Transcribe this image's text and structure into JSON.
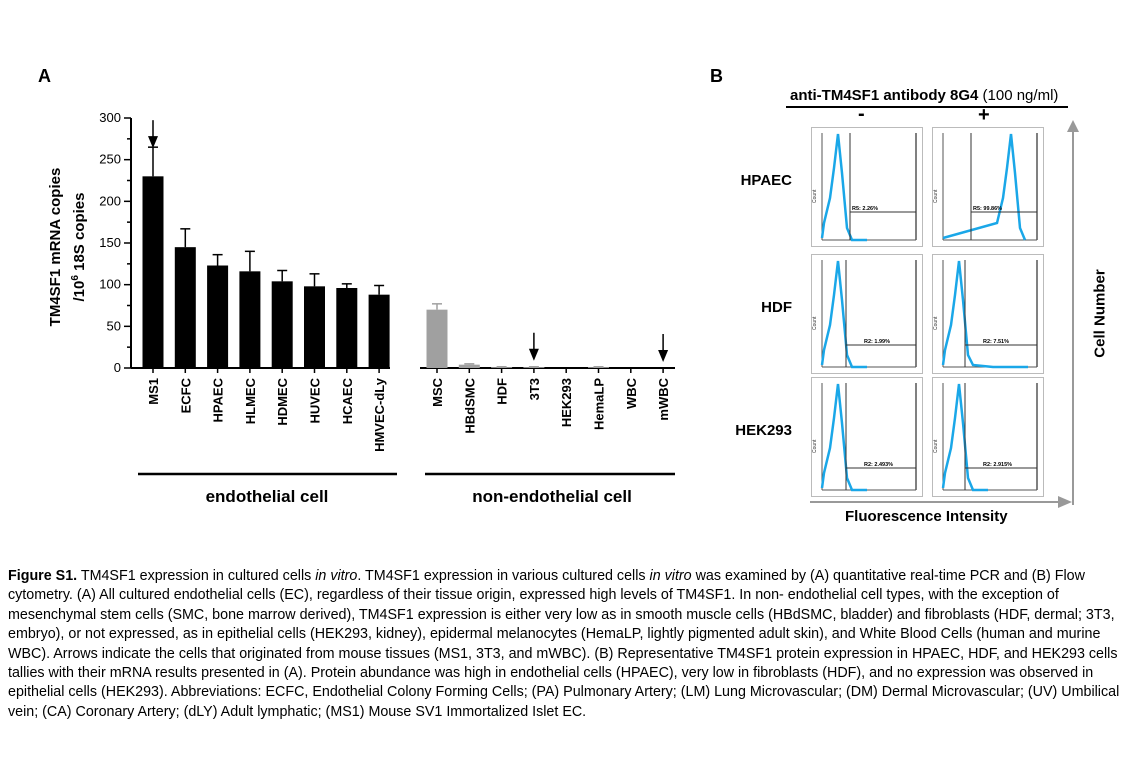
{
  "panel_a_label": "A",
  "panel_b_label": "B",
  "chart_data": {
    "type": "bar",
    "ylabel_line1": "TM4SF1 mRNA copies",
    "ylabel_line2_prefix": "/10",
    "ylabel_line2_sup": "6",
    "ylabel_line2_suffix": " 18S copies",
    "ylim": [
      0,
      300
    ],
    "yticks": [
      "0",
      "50",
      "100",
      "150",
      "200",
      "250",
      "300"
    ],
    "categories": [
      "MS1",
      "ECFC",
      "HPAEC",
      "HLMEC",
      "HDMEC",
      "HUVEC",
      "HCAEC",
      "HMVEC-dLy",
      "MSC",
      "HBdSMC",
      "HDF",
      "3T3",
      "HEK293",
      "HemaLP",
      "WBC",
      "mWBC"
    ],
    "values": [
      230,
      145,
      123,
      116,
      104,
      98,
      96,
      88,
      70,
      4,
      1,
      1,
      0,
      1,
      0,
      0
    ],
    "errors": [
      35,
      22,
      13,
      24,
      13,
      15,
      5,
      11,
      7,
      1,
      0.5,
      0.5,
      0,
      0.5,
      0,
      0
    ],
    "colors": [
      "#000000",
      "#000000",
      "#000000",
      "#000000",
      "#000000",
      "#000000",
      "#000000",
      "#000000",
      "#a0a0a0",
      "#a0a0a0",
      "#a0a0a0",
      "#a0a0a0",
      "#a0a0a0",
      "#a0a0a0",
      "#a0a0a0",
      "#a0a0a0"
    ],
    "arrows": [
      "MS1",
      "3T3",
      "mWBC"
    ],
    "groups": [
      {
        "label": "endothelial cell"
      },
      {
        "label": "non-endothelial cell"
      }
    ]
  },
  "flow": {
    "title_bold": "anti-TM4SF1 antibody 8G4",
    "title_normal": " (100 ng/ml)",
    "minus": "-",
    "plus": "+",
    "y_axis": "Cell Number",
    "x_axis": "Fluorescence Intensity",
    "hist_color": "#1aa7e8",
    "rows": [
      {
        "label": "HPAEC",
        "minus_gate": "R5: 2.26%",
        "plus_gate": "R5: 99.86%"
      },
      {
        "label": "HDF",
        "minus_gate": "R2: 1.99%",
        "plus_gate": "R2: 7.51%"
      },
      {
        "label": "HEK293",
        "minus_gate": "R2: 2.493%",
        "plus_gate": "R2: 2.915%"
      }
    ],
    "count_label": "Count"
  },
  "caption": {
    "lead": "Figure S1.",
    "t1": " TM4SF1 expression in cultured cells ",
    "i1": "in vitro",
    "t2": ". TM4SF1 expression in various cultured cells ",
    "i2": "in vitro",
    "t3": " was examined by (A) quantitative real-time PCR and (B) Flow cytometry. (A) All cultured endothelial cells (EC), regardless of their tissue origin, expressed high levels of TM4SF1. In non- endothelial cell types, with the exception of mesenchymal stem cells (SMC, bone marrow derived), TM4SF1 expression is either very low as in smooth muscle cells (HBdSMC, bladder) and fibroblasts (HDF, dermal; 3T3, embryo), or not expressed, as in epithelial cells (HEK293, kidney), epidermal melanocytes (HemaLP, lightly pigmented adult skin), and White Blood Cells (human and murine WBC). Arrows indicate the cells that originated from mouse tissues (MS1, 3T3, and mWBC). (B) Representative TM4SF1 protein expression in HPAEC, HDF, and HEK293 cells tallies with their mRNA results presented in (A). Protein abundance was high in endothelial cells (HPAEC), very low in fibroblasts (HDF), and no expression was observed in epithelial cells (HEK293). Abbreviations: ECFC, Endothelial Colony Forming Cells; (PA) Pulmonary Artery; (LM) Lung Microvascular; (DM) Dermal Microvascular; (UV) Umbilical vein; (CA) Coronary Artery; (dLY) Adult lymphatic; (MS1) Mouse SV1 Immortalized Islet EC."
  }
}
